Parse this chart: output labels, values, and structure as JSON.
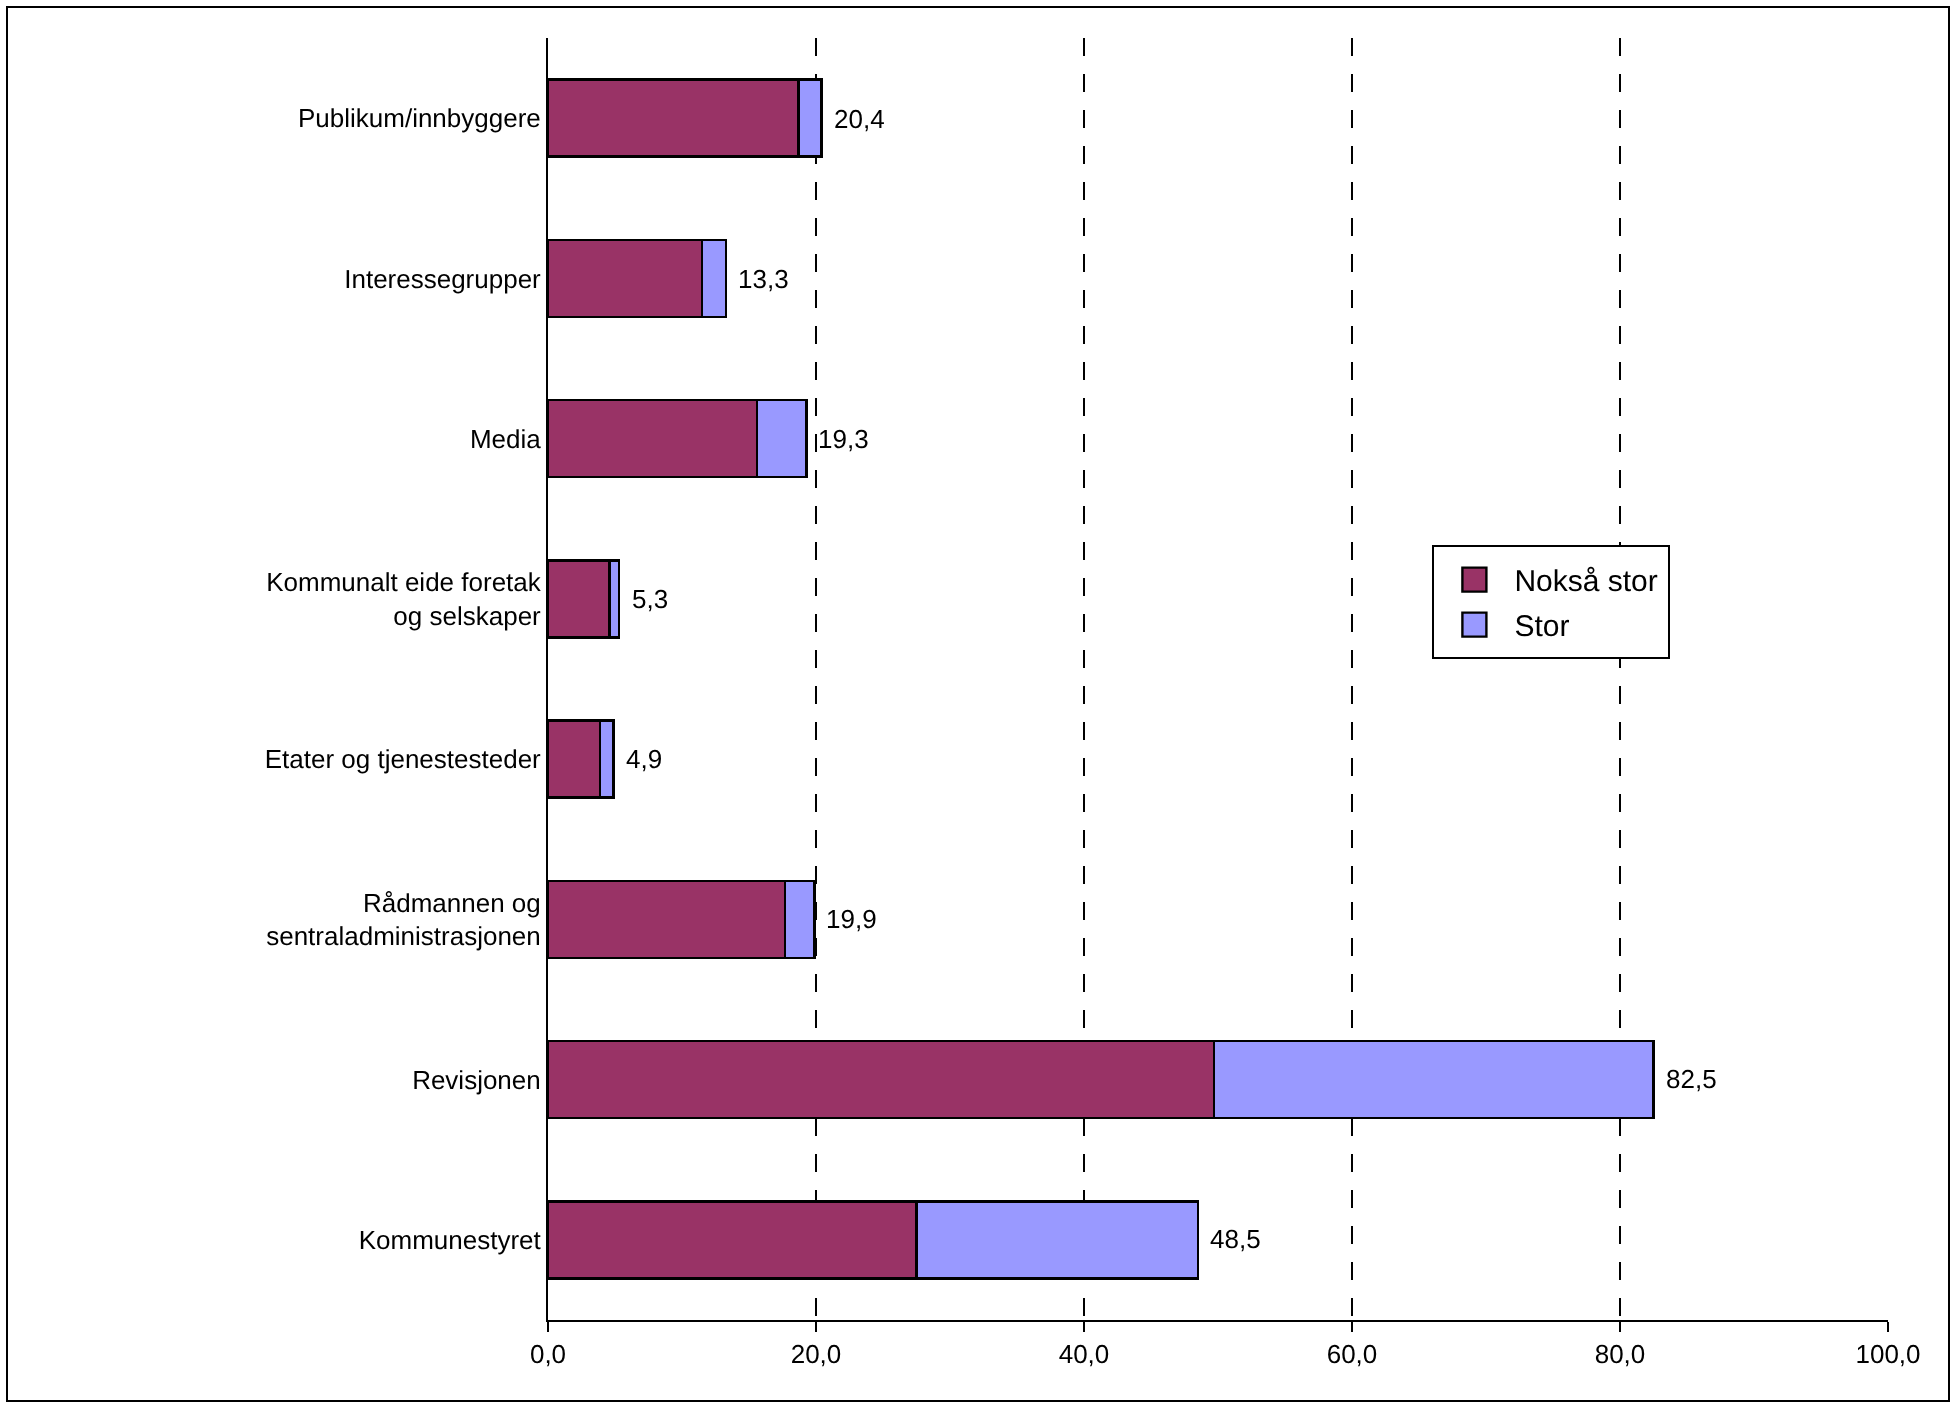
{
  "chart_data": {
    "type": "bar",
    "orientation": "horizontal",
    "stacked": true,
    "categories": [
      "Publikum/innbyggere",
      "Interessegrupper",
      "Media",
      "Kommunalt eide foretak og selskaper",
      "Etater og tjenestesteder",
      "Rådmannen og sentraladministrasjonen",
      "Revisjonen",
      "Kommunestyret"
    ],
    "series": [
      {
        "name": "Nokså stor",
        "color": "#993366",
        "values": [
          18.7,
          11.5,
          15.6,
          4.6,
          3.9,
          17.7,
          49.7,
          27.5
        ]
      },
      {
        "name": "Stor",
        "color": "#9999ff",
        "values": [
          1.7,
          1.8,
          3.7,
          0.7,
          1.0,
          2.2,
          32.8,
          21.0
        ]
      }
    ],
    "totals": [
      "20,4",
      "13,3",
      "19,3",
      "5,3",
      "4,9",
      "19,9",
      "82,5",
      "48,5"
    ],
    "xlim": [
      0,
      100
    ],
    "xticks": [
      {
        "value": 0,
        "label": "0,0"
      },
      {
        "value": 20,
        "label": "20,0"
      },
      {
        "value": 40,
        "label": "40,0"
      },
      {
        "value": 60,
        "label": "60,0"
      },
      {
        "value": 80,
        "label": "80,0"
      },
      {
        "value": 100,
        "label": "100,0"
      }
    ],
    "grid": "x",
    "line_style": "dashed",
    "legend": "right"
  }
}
